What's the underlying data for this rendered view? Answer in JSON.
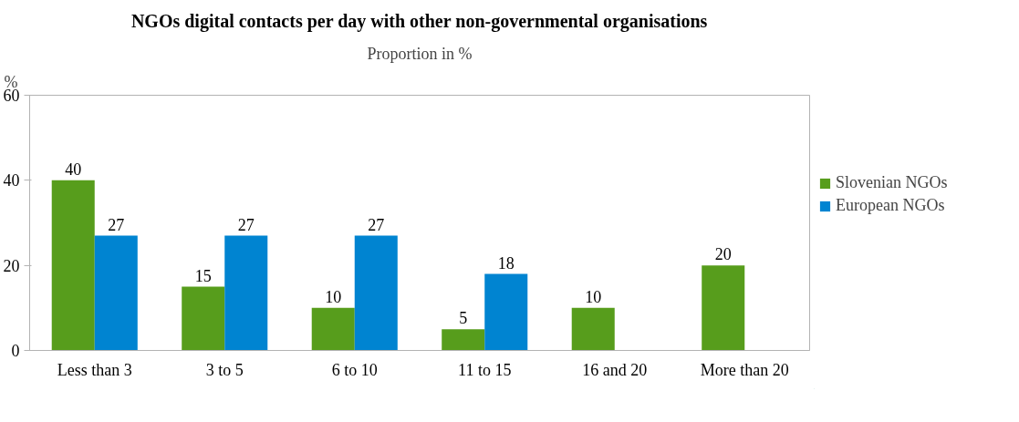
{
  "chart_data": {
    "type": "bar",
    "title": "NGOs digital contacts per day with other non-governmental organisations",
    "subtitle": "Proportion in %",
    "ylabel": "%",
    "categories": [
      "Less than 3",
      "3 to 5",
      "6 to 10",
      "11 to 15",
      "16 and 20",
      "More than 20"
    ],
    "series": [
      {
        "name": "Slovenian NGOs",
        "color": "#579d1c",
        "values": [
          40,
          15,
          10,
          5,
          10,
          20
        ]
      },
      {
        "name": "European NGOs",
        "color": "#0084d1",
        "values": [
          27,
          27,
          27,
          18,
          null,
          null
        ]
      }
    ],
    "ylim": [
      0,
      60
    ],
    "yticks": [
      0,
      20,
      40,
      60
    ],
    "grid": false,
    "legend": "right",
    "data_labels": true
  }
}
